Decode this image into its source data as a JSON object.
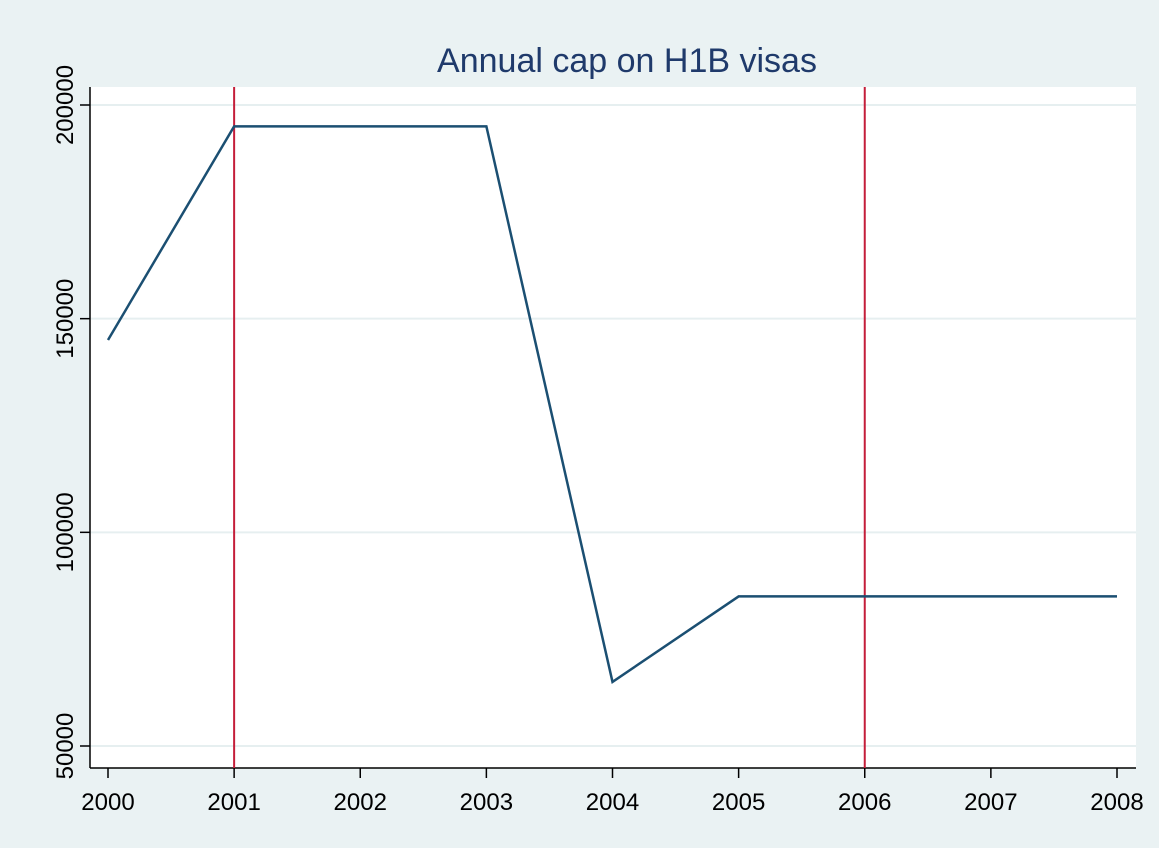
{
  "chart_data": {
    "type": "line",
    "title": "Annual cap on H1B visas",
    "xlabel": "",
    "ylabel": "",
    "x": [
      2000,
      2001,
      2002,
      2003,
      2004,
      2005,
      2006,
      2007,
      2008
    ],
    "series": [
      {
        "values": [
          145000,
          195000,
          195000,
          195000,
          65000,
          85000,
          85000,
          85000,
          85000
        ]
      }
    ],
    "xticks": [
      "2000",
      "2001",
      "2002",
      "2003",
      "2004",
      "2005",
      "2006",
      "2007",
      "2008"
    ],
    "yticks": [
      "50000",
      "100000",
      "150000",
      "200000"
    ],
    "xlim": [
      2000,
      2008
    ],
    "ylim": [
      50000,
      200000
    ],
    "reference_lines_x": [
      2001,
      2006
    ],
    "grid": true,
    "legend": "none",
    "colors": {
      "background": "#eaf2f3",
      "plot_area": "#ffffff",
      "title": "#1f3a6b",
      "line": "#1b4f72",
      "reference": "#c41e3a",
      "grid": "#e6eff0",
      "axis": "#000000"
    }
  }
}
